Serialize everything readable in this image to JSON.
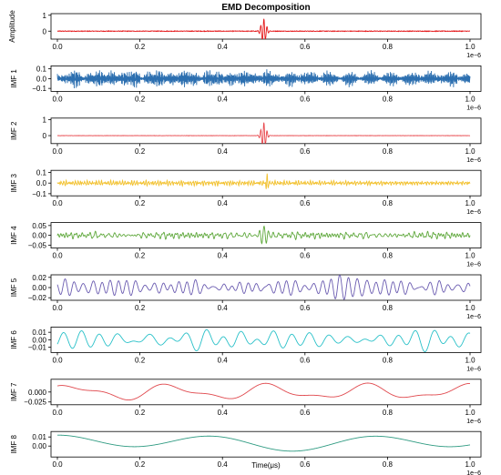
{
  "chart_data": {
    "type": "line",
    "title": "EMD Decomposition",
    "xlabel": "Time(μs)",
    "x_tick_labels": [
      "0.0",
      "0.2",
      "0.4",
      "0.6",
      "0.8",
      "1.0"
    ],
    "x_range": [
      0,
      1
    ],
    "x_scale_exponent": "1e-6",
    "x_exponent_label": "1e−6",
    "grid": false,
    "panels": [
      {
        "ylabel": "Amplitude",
        "color": "#e41a1c",
        "ylim": [
          -0.5,
          1.1
        ],
        "yticks": [
          "1",
          "0"
        ],
        "ytick_values": [
          1,
          0
        ],
        "signal": {
          "noise_amp": 0.02,
          "burst_amp": 0.8,
          "burst_center": 0.5,
          "burst_width": 0.008,
          "burst_freq": 130
        }
      },
      {
        "ylabel": "IMF 1",
        "color": "#2c6fb0",
        "ylim": [
          -0.13,
          0.13
        ],
        "yticks": [
          "0.1",
          "0.0",
          "−0.1"
        ],
        "ytick_values": [
          0.1,
          0,
          -0.1
        ],
        "signal": {
          "noise_amp": 0.065,
          "noise_freq": 500,
          "burst_amp": 0.03,
          "burst_center": 0.49,
          "burst_width": 0.004,
          "burst_freq": 300
        }
      },
      {
        "ylabel": "IMF 2",
        "color": "#e8474c",
        "ylim": [
          -0.5,
          1.1
        ],
        "yticks": [
          "1",
          "0"
        ],
        "ytick_values": [
          1,
          0
        ],
        "signal": {
          "noise_amp": 0.008,
          "burst_amp": 0.82,
          "burst_center": 0.5,
          "burst_width": 0.008,
          "burst_freq": 130
        }
      },
      {
        "ylabel": "IMF 3",
        "color": "#f2c12e",
        "ylim": [
          -0.12,
          0.12
        ],
        "yticks": [
          "0.1",
          "0.0",
          "−0.1"
        ],
        "ytick_values": [
          0.1,
          0,
          -0.1
        ],
        "signal": {
          "noise_amp": 0.018,
          "noise_freq": 250,
          "burst_amp": 0.1,
          "burst_center": 0.508,
          "burst_width": 0.004,
          "burst_freq": 180
        }
      },
      {
        "ylabel": "IMF 4",
        "color": "#5fa83c",
        "ylim": [
          -0.065,
          0.065
        ],
        "yticks": [
          "0.05",
          "0.00",
          "−0.05"
        ],
        "ytick_values": [
          0.05,
          0,
          -0.05
        ],
        "signal": {
          "noise_amp": 0.014,
          "noise_freq": 110,
          "burst_amp": 0.045,
          "burst_center": 0.5,
          "burst_width": 0.012,
          "burst_freq": 90
        }
      },
      {
        "ylabel": "IMF 5",
        "color": "#6a5bb0",
        "ylim": [
          -0.025,
          0.025
        ],
        "yticks": [
          "0.02",
          "0.00",
          "−0.02"
        ],
        "ytick_values": [
          0.02,
          0,
          -0.02
        ],
        "signal": {
          "noise_amp": 0.015,
          "noise_freq": 45,
          "burst_amp": 0.0,
          "burst_center": 0.5,
          "burst_width": 0.01,
          "burst_freq": 40
        }
      },
      {
        "ylabel": "IMF 6",
        "color": "#28c0c8",
        "ylim": [
          -0.017,
          0.017
        ],
        "yticks": [
          "0.01",
          "0.00",
          "−0.01"
        ],
        "ytick_values": [
          0.01,
          0,
          -0.01
        ],
        "signal": {
          "noise_amp": 0.01,
          "noise_freq": 22,
          "burst_amp": 0.0,
          "burst_center": 0.5,
          "burst_width": 0.01,
          "burst_freq": 20
        }
      },
      {
        "ylabel": "IMF 7",
        "color": "#e0484d",
        "ylim": [
          -0.032,
          0.032
        ],
        "yticks": [
          "0.000",
          "−0.025"
        ],
        "ytick_values": [
          0,
          -0.025
        ],
        "signal": {
          "kind": "slow",
          "amp": 0.014,
          "offset": 0.0,
          "freqs": [
            4.2,
            7.9
          ],
          "phases": [
            0.6,
            1.9
          ],
          "weights": [
            1.0,
            0.45
          ]
        }
      },
      {
        "ylabel": "IMF 8",
        "color": "#2f9b82",
        "ylim": [
          -0.012,
          0.016
        ],
        "yticks": [
          "0.01",
          "0.00"
        ],
        "ytick_values": [
          0.01,
          0
        ],
        "signal": {
          "kind": "slow",
          "amp": 0.006,
          "offset": 0.004,
          "freqs": [
            2.6,
            1.2
          ],
          "phases": [
            1.7,
            0.4
          ],
          "weights": [
            1.0,
            0.35
          ]
        }
      }
    ]
  }
}
